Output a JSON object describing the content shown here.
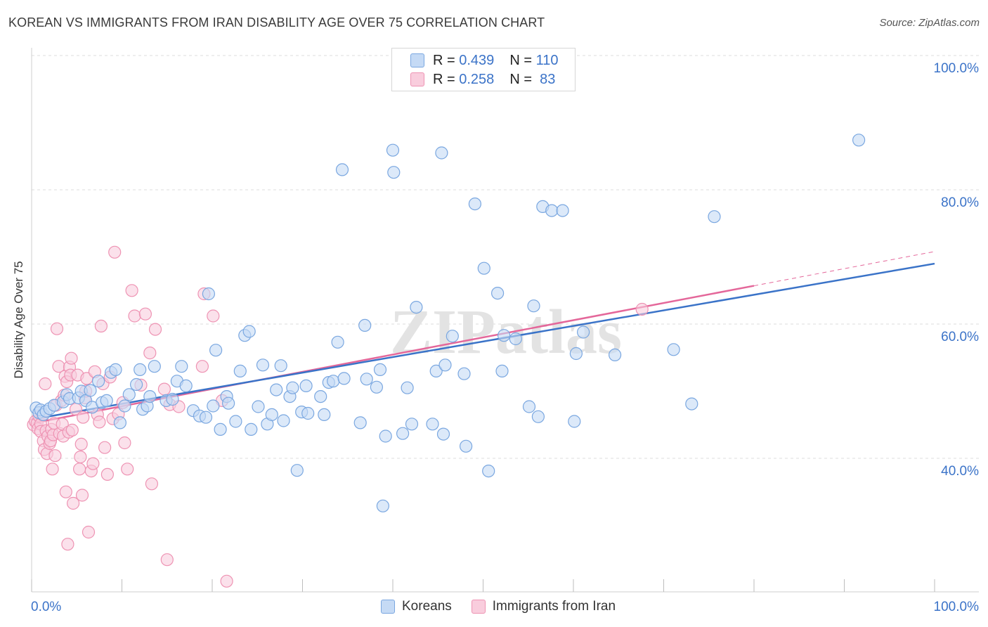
{
  "title": "KOREAN VS IMMIGRANTS FROM IRAN DISABILITY AGE OVER 75 CORRELATION CHART",
  "source": "Source: ZipAtlas.com",
  "watermark": "ZIPatlas",
  "colors": {
    "blue": "#7aa7e0",
    "blue_fill": "#c5daf5",
    "blue_line": "#3a73c8",
    "pink": "#ee93b3",
    "pink_fill": "#f9cddd",
    "pink_line": "#e4679a",
    "axis_text": "#3b73c8",
    "grid": "#dcdcdc"
  },
  "legend": {
    "rows": [
      {
        "r_label": "R = ",
        "r_value": "0.439",
        "n_label": "N = ",
        "n_value": "110"
      },
      {
        "r_label": "R = ",
        "r_value": "0.258",
        "n_label": "N = ",
        "n_value": " 83"
      }
    ]
  },
  "bottom_legend": [
    "Koreans",
    "Immigrants from Iran"
  ],
  "chart_data": {
    "type": "scatter",
    "title": "KOREAN VS IMMIGRANTS FROM IRAN DISABILITY AGE OVER 75 CORRELATION CHART",
    "xlabel": "",
    "ylabel": "Disability Age Over 75",
    "xlim": [
      0,
      100
    ],
    "ylim": [
      20,
      102
    ],
    "x_tick_labels": [
      "0.0%",
      "100.0%"
    ],
    "y_ticks": [
      40,
      60,
      80,
      100
    ],
    "y_tick_labels": [
      "40.0%",
      "60.0%",
      "80.0%",
      "100.0%"
    ],
    "grid": true,
    "legend_position": "top-center",
    "series": [
      {
        "name": "Koreans",
        "color": "#7aa7e0",
        "trend": {
          "x": [
            0,
            100
          ],
          "y": [
            45.8,
            69.0
          ]
        },
        "points": [
          [
            0.5,
            47.5
          ],
          [
            0.8,
            46.8
          ],
          [
            1.0,
            47.2
          ],
          [
            1.3,
            46.5
          ],
          [
            1.6,
            47.0
          ],
          [
            2.0,
            47.4
          ],
          [
            2.5,
            47.9
          ],
          [
            3.5,
            48.4
          ],
          [
            3.9,
            49.5
          ],
          [
            4.2,
            48.9
          ],
          [
            5.2,
            49.0
          ],
          [
            5.5,
            50.0
          ],
          [
            6.0,
            48.6
          ],
          [
            6.5,
            50.1
          ],
          [
            6.7,
            47.6
          ],
          [
            7.4,
            51.5
          ],
          [
            7.8,
            48.3
          ],
          [
            8.3,
            48.6
          ],
          [
            8.8,
            52.8
          ],
          [
            9.3,
            53.2
          ],
          [
            9.8,
            45.3
          ],
          [
            10.3,
            47.8
          ],
          [
            10.8,
            49.5
          ],
          [
            11.6,
            51.0
          ],
          [
            12.0,
            53.2
          ],
          [
            12.3,
            47.3
          ],
          [
            12.8,
            47.8
          ],
          [
            13.1,
            49.2
          ],
          [
            13.6,
            53.7
          ],
          [
            14.9,
            48.6
          ],
          [
            15.6,
            48.8
          ],
          [
            16.1,
            51.5
          ],
          [
            16.6,
            53.7
          ],
          [
            17.1,
            50.8
          ],
          [
            17.9,
            47.1
          ],
          [
            18.6,
            46.3
          ],
          [
            19.3,
            46.1
          ],
          [
            19.6,
            64.5
          ],
          [
            20.1,
            47.8
          ],
          [
            20.4,
            56.1
          ],
          [
            20.9,
            44.3
          ],
          [
            21.6,
            49.2
          ],
          [
            21.8,
            48.2
          ],
          [
            22.6,
            45.5
          ],
          [
            23.1,
            53.0
          ],
          [
            23.6,
            58.3
          ],
          [
            24.1,
            58.9
          ],
          [
            24.3,
            44.3
          ],
          [
            25.1,
            47.7
          ],
          [
            25.6,
            53.9
          ],
          [
            26.1,
            45.1
          ],
          [
            26.6,
            46.5
          ],
          [
            27.1,
            50.2
          ],
          [
            27.6,
            53.8
          ],
          [
            27.9,
            45.6
          ],
          [
            28.6,
            49.2
          ],
          [
            28.9,
            50.5
          ],
          [
            29.4,
            38.2
          ],
          [
            29.9,
            46.9
          ],
          [
            30.4,
            50.8
          ],
          [
            30.6,
            46.7
          ],
          [
            32.0,
            49.2
          ],
          [
            32.4,
            46.5
          ],
          [
            32.9,
            51.3
          ],
          [
            33.4,
            51.5
          ],
          [
            33.9,
            57.3
          ],
          [
            34.4,
            83.0
          ],
          [
            34.6,
            51.9
          ],
          [
            36.4,
            45.3
          ],
          [
            36.9,
            59.8
          ],
          [
            37.1,
            51.8
          ],
          [
            38.2,
            50.6
          ],
          [
            38.6,
            53.2
          ],
          [
            38.9,
            32.9
          ],
          [
            39.2,
            43.3
          ],
          [
            40.0,
            85.9
          ],
          [
            40.1,
            82.6
          ],
          [
            41.1,
            43.7
          ],
          [
            41.6,
            50.5
          ],
          [
            42.1,
            45.1
          ],
          [
            42.6,
            62.5
          ],
          [
            44.4,
            45.1
          ],
          [
            44.8,
            53.0
          ],
          [
            45.4,
            85.5
          ],
          [
            45.6,
            43.6
          ],
          [
            45.8,
            53.9
          ],
          [
            46.6,
            58.2
          ],
          [
            47.9,
            52.6
          ],
          [
            48.1,
            41.8
          ],
          [
            49.1,
            77.9
          ],
          [
            50.1,
            68.3
          ],
          [
            50.6,
            38.1
          ],
          [
            51.6,
            64.6
          ],
          [
            52.1,
            53.0
          ],
          [
            52.3,
            58.3
          ],
          [
            53.6,
            57.8
          ],
          [
            55.1,
            47.7
          ],
          [
            55.6,
            62.7
          ],
          [
            56.1,
            46.2
          ],
          [
            56.6,
            77.5
          ],
          [
            57.6,
            76.9
          ],
          [
            58.8,
            76.9
          ],
          [
            60.1,
            45.5
          ],
          [
            60.3,
            55.6
          ],
          [
            61.1,
            58.8
          ],
          [
            64.6,
            55.4
          ],
          [
            71.1,
            56.2
          ],
          [
            73.1,
            48.1
          ],
          [
            75.6,
            76.0
          ],
          [
            91.6,
            87.4
          ]
        ]
      },
      {
        "name": "Immigrants from Iran",
        "color": "#ee93b3",
        "trend": {
          "x": [
            0,
            80
          ],
          "y": [
            45.2,
            65.7
          ]
        },
        "trend_dashed": {
          "x": [
            80,
            100
          ],
          "y": [
            65.7,
            70.8
          ]
        },
        "points": [
          [
            0.2,
            45.0
          ],
          [
            0.4,
            45.5
          ],
          [
            0.6,
            45.2
          ],
          [
            0.7,
            44.4
          ],
          [
            0.8,
            46.3
          ],
          [
            1.0,
            45.1
          ],
          [
            1.0,
            44.0
          ],
          [
            1.2,
            46.5
          ],
          [
            1.3,
            42.6
          ],
          [
            1.4,
            41.3
          ],
          [
            1.5,
            51.1
          ],
          [
            1.6,
            44.1
          ],
          [
            1.7,
            40.7
          ],
          [
            1.8,
            43.3
          ],
          [
            2.0,
            42.2
          ],
          [
            2.1,
            42.6
          ],
          [
            2.2,
            44.3
          ],
          [
            2.3,
            38.4
          ],
          [
            2.4,
            43.5
          ],
          [
            2.5,
            45.2
          ],
          [
            2.6,
            40.4
          ],
          [
            2.7,
            47.9
          ],
          [
            2.8,
            59.3
          ],
          [
            3.0,
            53.7
          ],
          [
            3.1,
            43.7
          ],
          [
            3.3,
            48.6
          ],
          [
            3.4,
            45.1
          ],
          [
            3.5,
            43.3
          ],
          [
            3.6,
            49.4
          ],
          [
            3.7,
            52.2
          ],
          [
            3.8,
            35.0
          ],
          [
            3.9,
            51.4
          ],
          [
            4.0,
            27.2
          ],
          [
            4.1,
            43.9
          ],
          [
            4.2,
            53.6
          ],
          [
            4.3,
            52.4
          ],
          [
            4.4,
            54.9
          ],
          [
            4.5,
            44.2
          ],
          [
            4.6,
            33.3
          ],
          [
            4.9,
            47.3
          ],
          [
            5.1,
            52.4
          ],
          [
            5.3,
            38.4
          ],
          [
            5.4,
            40.2
          ],
          [
            5.5,
            42.1
          ],
          [
            5.6,
            34.5
          ],
          [
            5.7,
            46.1
          ],
          [
            5.9,
            49.0
          ],
          [
            6.0,
            50.0
          ],
          [
            6.1,
            51.9
          ],
          [
            6.3,
            29.0
          ],
          [
            6.6,
            38.1
          ],
          [
            6.8,
            39.2
          ],
          [
            7.0,
            52.9
          ],
          [
            7.3,
            46.5
          ],
          [
            7.5,
            45.4
          ],
          [
            7.7,
            59.7
          ],
          [
            7.9,
            51.1
          ],
          [
            8.1,
            41.6
          ],
          [
            8.4,
            37.6
          ],
          [
            8.7,
            52.1
          ],
          [
            9.0,
            45.9
          ],
          [
            9.2,
            70.7
          ],
          [
            9.6,
            46.6
          ],
          [
            10.1,
            48.3
          ],
          [
            10.3,
            42.3
          ],
          [
            10.6,
            38.4
          ],
          [
            11.1,
            65.0
          ],
          [
            11.4,
            61.2
          ],
          [
            12.1,
            50.9
          ],
          [
            12.6,
            61.5
          ],
          [
            13.1,
            55.7
          ],
          [
            13.3,
            36.2
          ],
          [
            13.7,
            59.2
          ],
          [
            14.7,
            50.3
          ],
          [
            15.0,
            24.9
          ],
          [
            15.3,
            48.0
          ],
          [
            16.3,
            47.7
          ],
          [
            18.9,
            53.7
          ],
          [
            19.1,
            64.5
          ],
          [
            20.1,
            61.2
          ],
          [
            21.1,
            48.6
          ],
          [
            21.6,
            21.7
          ],
          [
            67.6,
            62.2
          ]
        ]
      }
    ]
  }
}
